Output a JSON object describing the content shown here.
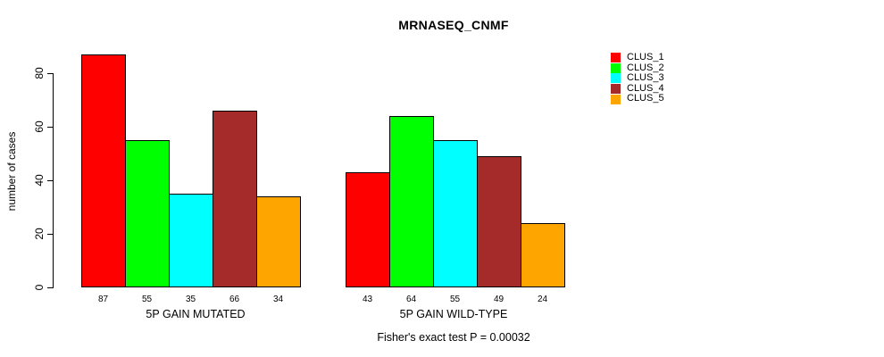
{
  "chart_data": {
    "type": "bar",
    "title": "MRNASEQ_CNMF",
    "xlabel": "",
    "ylabel": "number of cases",
    "groups": [
      "5P GAIN MUTATED",
      "5P GAIN WILD-TYPE"
    ],
    "series": [
      {
        "name": "CLUS_1",
        "color": "#FF0000",
        "values": [
          87,
          43
        ]
      },
      {
        "name": "CLUS_2",
        "color": "#00FF00",
        "values": [
          55,
          64
        ]
      },
      {
        "name": "CLUS_3",
        "color": "#00FFFF",
        "values": [
          35,
          55
        ]
      },
      {
        "name": "CLUS_4",
        "color": "#A52A2A",
        "values": [
          66,
          49
        ]
      },
      {
        "name": "CLUS_5",
        "color": "#FFA500",
        "values": [
          34,
          24
        ]
      }
    ],
    "bar_value_labels": [
      [
        87,
        55,
        35,
        66,
        34
      ],
      [
        43,
        64,
        55,
        49,
        24
      ]
    ],
    "y_ticks": [
      0,
      20,
      40,
      60,
      80
    ],
    "ylim": [
      0,
      80
    ],
    "grid": false,
    "legend_position": "right",
    "axis_color": "#000000",
    "footnote": "Fisher's exact test P = 0.00032"
  }
}
